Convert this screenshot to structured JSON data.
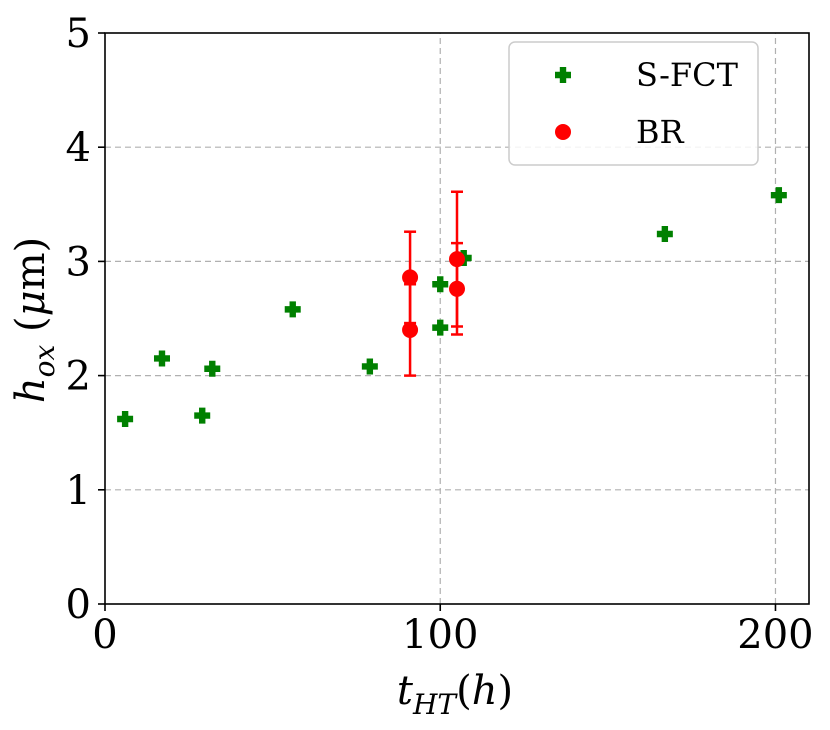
{
  "chart_data": {
    "type": "scatter",
    "title": "",
    "xlabel": "t_HT(h)",
    "ylabel": "h_ox (μm)",
    "xlim": [
      0,
      210
    ],
    "ylim": [
      0,
      5
    ],
    "xticks": [
      0,
      100,
      200
    ],
    "yticks": [
      0,
      1,
      2,
      3,
      4,
      5
    ],
    "grid": true,
    "legend_position": "top-right",
    "series": [
      {
        "name": "S-FCT",
        "marker": "plus",
        "color": "#008000",
        "x": [
          6,
          17,
          29,
          32,
          56,
          79,
          100,
          100,
          107,
          167,
          201
        ],
        "y": [
          1.62,
          2.15,
          1.65,
          2.06,
          2.58,
          2.08,
          2.42,
          2.8,
          3.03,
          3.24,
          3.58
        ]
      },
      {
        "name": "BR",
        "marker": "circle",
        "color": "#ff0000",
        "x": [
          91,
          91,
          105,
          105
        ],
        "y": [
          2.4,
          2.86,
          2.76,
          3.02
        ],
        "yerr": [
          0.4,
          0.4,
          0.4,
          0.59
        ]
      }
    ]
  }
}
